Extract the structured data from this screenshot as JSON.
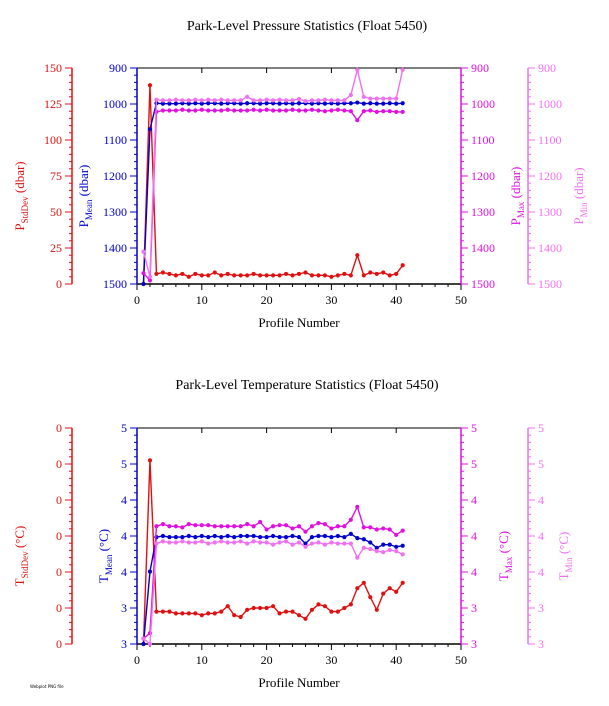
{
  "colors": {
    "sd": "#e01010",
    "mean": "#0000cc",
    "max": "#e010e0",
    "min": "#f070f0",
    "axis": "#000000"
  },
  "footer_tag": "Webplot PNG file",
  "chart_data": [
    {
      "type": "line",
      "title": "Park-Level Pressure Statistics (Float 5450)",
      "xlabel": "Profile Number",
      "xlim": [
        0,
        50
      ],
      "xticks": [
        "0",
        "10",
        "20",
        "30",
        "40",
        "50"
      ],
      "x": [
        1,
        2,
        3,
        4,
        5,
        6,
        7,
        8,
        9,
        10,
        11,
        12,
        13,
        14,
        15,
        16,
        17,
        18,
        19,
        20,
        21,
        22,
        23,
        24,
        25,
        26,
        27,
        28,
        29,
        30,
        31,
        32,
        33,
        34,
        35,
        36,
        37,
        38,
        39,
        40,
        41
      ],
      "axes": [
        {
          "key": "sd",
          "label": "P",
          "label_sub": "StdDev",
          "label_unit": "(dbar)",
          "side": "left-outer",
          "lim": [
            0,
            150
          ],
          "inverted": false,
          "ticks": [
            "0",
            "25",
            "50",
            "75",
            "100",
            "125",
            "150"
          ]
        },
        {
          "key": "mean",
          "label": "P",
          "label_sub": "Mean",
          "label_unit": "(dbar)",
          "side": "left-inner",
          "lim": [
            900,
            1500
          ],
          "inverted": true,
          "ticks": [
            "900",
            "1000",
            "1100",
            "1200",
            "1300",
            "1400",
            "1500"
          ]
        },
        {
          "key": "max",
          "label": "P",
          "label_sub": "Max",
          "label_unit": "(dbar)",
          "side": "right-inner",
          "lim": [
            900,
            1500
          ],
          "inverted": true,
          "ticks": [
            "900",
            "1000",
            "1100",
            "1200",
            "1300",
            "1400",
            "1500"
          ]
        },
        {
          "key": "min",
          "label": "P",
          "label_sub": "Min",
          "label_unit": "(dbar)",
          "side": "right-outer",
          "lim": [
            900,
            1500
          ],
          "inverted": true,
          "ticks": [
            "900",
            "1000",
            "1100",
            "1200",
            "1300",
            "1400",
            "1500"
          ]
        }
      ],
      "series": [
        {
          "key": "sd",
          "values": [
            0,
            138,
            7,
            8,
            7,
            6,
            7,
            5,
            7,
            6,
            6,
            8,
            6,
            7,
            6,
            6,
            6,
            7,
            6,
            6,
            6,
            6,
            7,
            6,
            7,
            8,
            6,
            6,
            6,
            5,
            6,
            7,
            6,
            20,
            6,
            8,
            7,
            8,
            6,
            7,
            13
          ]
        },
        {
          "key": "mean",
          "values": [
            1500,
            1070,
            998,
            999,
            999,
            999,
            998,
            999,
            998,
            999,
            998,
            998,
            999,
            998,
            998,
            999,
            998,
            998,
            999,
            998,
            998,
            999,
            998,
            999,
            998,
            998,
            999,
            998,
            999,
            998,
            999,
            998,
            998,
            996,
            999,
            998,
            999,
            999,
            998,
            999,
            998
          ]
        },
        {
          "key": "max",
          "values": [
            1470,
            1490,
            1022,
            1018,
            1018,
            1018,
            1016,
            1018,
            1018,
            1016,
            1018,
            1018,
            1018,
            1016,
            1018,
            1018,
            1018,
            1016,
            1018,
            1016,
            1018,
            1018,
            1018,
            1016,
            1018,
            1018,
            1016,
            1018,
            1020,
            1018,
            1016,
            1018,
            1020,
            1045,
            1020,
            1018,
            1022,
            1020,
            1020,
            1022,
            1022
          ]
        },
        {
          "key": "min",
          "values": [
            1410,
            1480,
            988,
            990,
            990,
            988,
            990,
            990,
            988,
            990,
            988,
            990,
            988,
            990,
            990,
            990,
            980,
            990,
            990,
            988,
            990,
            988,
            990,
            990,
            986,
            992,
            990,
            990,
            988,
            990,
            990,
            990,
            975,
            905,
            980,
            985,
            985,
            985,
            985,
            985,
            905
          ]
        }
      ]
    },
    {
      "type": "line",
      "title": "Park-Level Temperature Statistics (Float 5450)",
      "xlabel": "Profile Number",
      "xlim": [
        0,
        50
      ],
      "xticks": [
        "0",
        "10",
        "20",
        "30",
        "40",
        "50"
      ],
      "x": [
        1,
        2,
        3,
        4,
        5,
        6,
        7,
        8,
        9,
        10,
        11,
        12,
        13,
        14,
        15,
        16,
        17,
        18,
        19,
        20,
        21,
        22,
        23,
        24,
        25,
        26,
        27,
        28,
        29,
        30,
        31,
        32,
        33,
        34,
        35,
        36,
        37,
        38,
        39,
        40,
        41
      ],
      "axes": [
        {
          "key": "sd",
          "label": "T",
          "label_sub": "StdDev",
          "label_unit": "(°C)",
          "side": "left-outer",
          "lim": [
            0,
            6
          ],
          "inverted": false,
          "ticks": [
            "0",
            "0",
            "0",
            "0",
            "0",
            "0",
            "0"
          ]
        },
        {
          "key": "mean",
          "label": "T",
          "label_sub": "Mean",
          "label_unit": "(°C)",
          "side": "left-inner",
          "lim": [
            3.0,
            5.0
          ],
          "inverted": false,
          "ticks": [
            "3",
            "3",
            "4",
            "4",
            "4",
            "5",
            "5"
          ]
        },
        {
          "key": "max",
          "label": "T",
          "label_sub": "Max",
          "label_unit": "(°C)",
          "side": "right-inner",
          "lim": [
            3.0,
            5.0
          ],
          "inverted": false,
          "ticks": [
            "3",
            "3",
            "4",
            "4",
            "4",
            "5",
            "5"
          ]
        },
        {
          "key": "min",
          "label": "T",
          "label_sub": "Min",
          "label_unit": "(°C)",
          "side": "right-outer",
          "lim": [
            3.0,
            5.0
          ],
          "inverted": false,
          "ticks": [
            "3",
            "3",
            "4",
            "4",
            "4",
            "5",
            "5"
          ]
        }
      ],
      "series": [
        {
          "key": "sd",
          "values": [
            0,
            5.1,
            0.9,
            0.9,
            0.9,
            0.85,
            0.85,
            0.85,
            0.85,
            0.8,
            0.85,
            0.85,
            0.9,
            1.05,
            0.8,
            0.75,
            0.95,
            1.0,
            1.0,
            1.0,
            1.05,
            0.85,
            0.9,
            0.9,
            0.8,
            0.7,
            0.95,
            1.1,
            1.05,
            0.9,
            0.9,
            1.0,
            1.1,
            1.55,
            1.7,
            1.3,
            0.95,
            1.4,
            1.55,
            1.45,
            1.7
          ]
        },
        {
          "key": "mean",
          "values": [
            3.0,
            3.67,
            3.99,
            4.0,
            3.99,
            3.99,
            3.99,
            4.0,
            3.99,
            4.0,
            3.99,
            4.0,
            3.99,
            4.0,
            3.99,
            4.0,
            4.0,
            4.0,
            3.99,
            3.99,
            4.0,
            3.99,
            3.99,
            4.0,
            3.99,
            3.93,
            3.99,
            4.0,
            4.0,
            3.99,
            4.0,
            3.99,
            4.02,
            3.98,
            3.97,
            3.94,
            3.89,
            3.92,
            3.92,
            3.9,
            3.91
          ]
        },
        {
          "key": "max",
          "values": [
            3.05,
            3.1,
            4.09,
            4.11,
            4.09,
            4.09,
            4.08,
            4.11,
            4.1,
            4.1,
            4.1,
            4.09,
            4.09,
            4.09,
            4.09,
            4.09,
            4.11,
            4.09,
            4.13,
            4.06,
            4.09,
            4.1,
            4.1,
            4.07,
            4.09,
            4.04,
            4.09,
            4.12,
            4.11,
            4.07,
            4.09,
            4.09,
            4.15,
            4.27,
            4.08,
            4.08,
            4.06,
            4.07,
            4.06,
            4.01,
            4.05
          ]
        },
        {
          "key": "min",
          "values": [
            3.05,
            3.0,
            3.93,
            3.95,
            3.94,
            3.94,
            3.95,
            3.94,
            3.94,
            3.95,
            3.93,
            3.94,
            3.95,
            3.94,
            3.94,
            3.95,
            3.93,
            3.95,
            3.94,
            3.94,
            3.92,
            3.94,
            3.95,
            3.92,
            3.94,
            3.9,
            3.93,
            3.94,
            3.92,
            3.94,
            3.93,
            3.93,
            3.93,
            3.8,
            3.89,
            3.88,
            3.86,
            3.85,
            3.87,
            3.86,
            3.83
          ]
        }
      ]
    }
  ]
}
